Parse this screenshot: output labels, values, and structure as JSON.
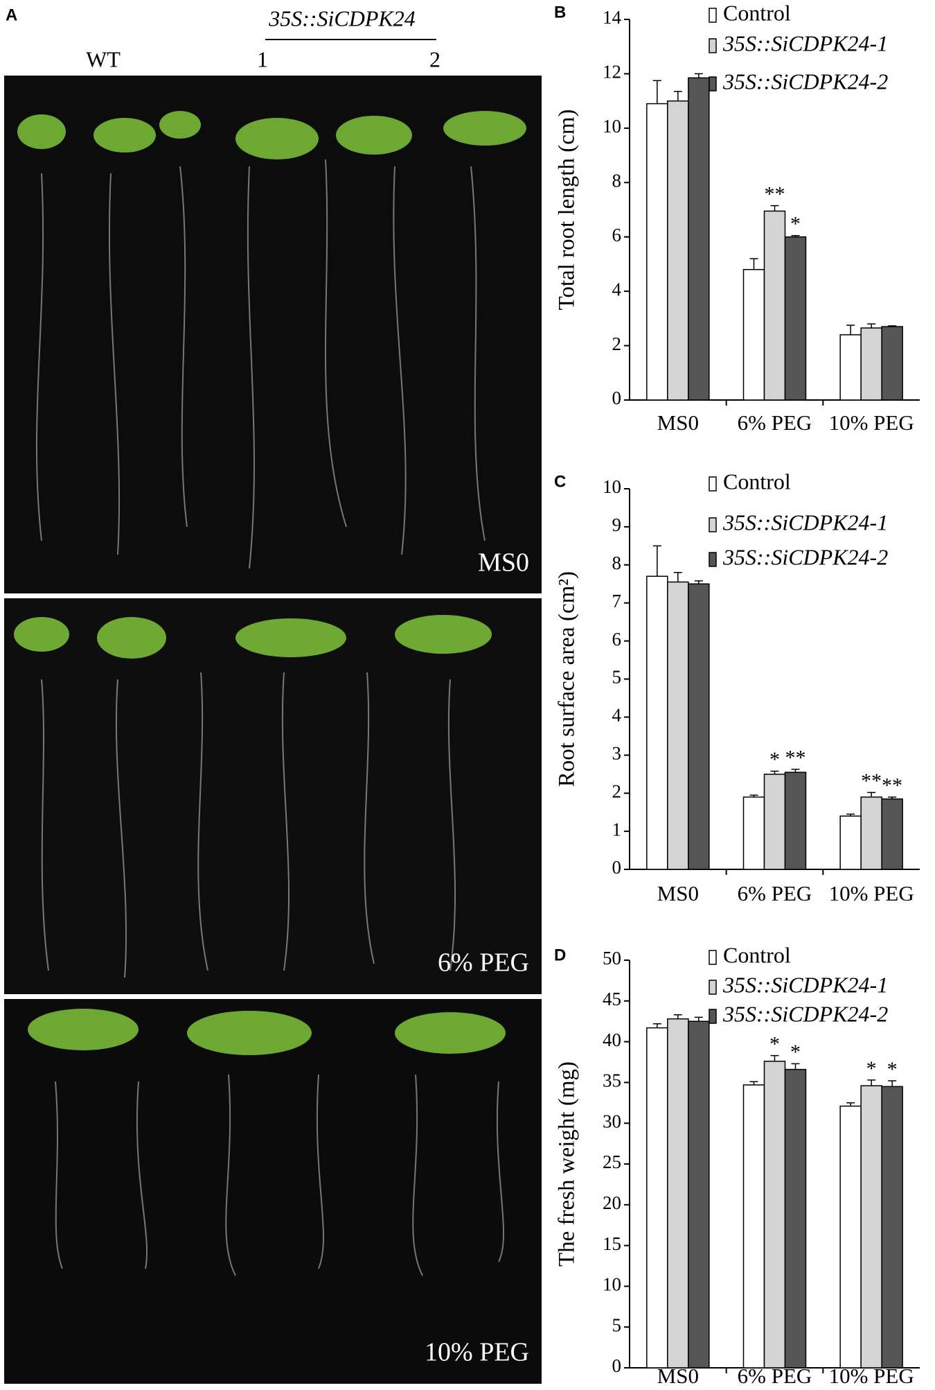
{
  "panel_a": {
    "letter": "A",
    "construct": "35S::SiCDPK24",
    "genotypes": [
      "WT",
      "1",
      "2"
    ],
    "treatments": [
      "MS0",
      "6% PEG",
      "10% PEG"
    ]
  },
  "chart_data": [
    {
      "type": "bar",
      "letter": "B",
      "y_label": "Total root length (cm)",
      "categories": [
        "MS0",
        "6% PEG",
        "10% PEG"
      ],
      "ylim": [
        0,
        14
      ],
      "yticks": [
        0,
        2,
        4,
        6,
        8,
        10,
        12,
        14
      ],
      "series": [
        {
          "name": "Control",
          "color": "#ffffff",
          "values": [
            10.9,
            4.8,
            2.4
          ],
          "errors": [
            0.85,
            0.4,
            0.35
          ],
          "significance": [
            null,
            null,
            null
          ]
        },
        {
          "name": "35S::SiCDPK24-1",
          "color": "#d4d4d4",
          "values": [
            11.0,
            6.95,
            2.65
          ],
          "errors": [
            0.35,
            0.2,
            0.15
          ],
          "significance": [
            null,
            "**",
            null
          ]
        },
        {
          "name": "35S::SiCDPK24-2",
          "color": "#555555",
          "values": [
            11.85,
            6.0,
            2.7
          ],
          "errors": [
            0.15,
            0.05,
            0.03
          ],
          "significance": [
            null,
            "*",
            null
          ]
        }
      ]
    },
    {
      "type": "bar",
      "letter": "C",
      "y_label": "Root surface area (cm²)",
      "categories": [
        "MS0",
        "6% PEG",
        "10% PEG"
      ],
      "ylim": [
        0,
        10
      ],
      "yticks": [
        0,
        1,
        2,
        3,
        4,
        5,
        6,
        7,
        8,
        9,
        10
      ],
      "series": [
        {
          "name": "Control",
          "color": "#ffffff",
          "values": [
            7.7,
            1.9,
            1.4
          ],
          "errors": [
            0.8,
            0.05,
            0.05
          ],
          "significance": [
            null,
            null,
            null
          ]
        },
        {
          "name": "35S::SiCDPK24-1",
          "color": "#d4d4d4",
          "values": [
            7.55,
            2.5,
            1.9
          ],
          "errors": [
            0.25,
            0.08,
            0.12
          ],
          "significance": [
            null,
            "*",
            "**"
          ]
        },
        {
          "name": "35S::SiCDPK24-2",
          "color": "#555555",
          "values": [
            7.5,
            2.55,
            1.85
          ],
          "errors": [
            0.08,
            0.08,
            0.05
          ],
          "significance": [
            null,
            "**",
            "**"
          ]
        }
      ]
    },
    {
      "type": "bar",
      "letter": "D",
      "y_label": "The fresh weight (mg)",
      "categories": [
        "MS0",
        "6% PEG",
        "10% PEG"
      ],
      "ylim": [
        0,
        50
      ],
      "yticks": [
        0,
        5,
        10,
        15,
        20,
        25,
        30,
        35,
        40,
        45,
        50
      ],
      "series": [
        {
          "name": "Control",
          "color": "#ffffff",
          "values": [
            41.7,
            34.7,
            32.1
          ],
          "errors": [
            0.5,
            0.4,
            0.4
          ],
          "significance": [
            null,
            null,
            null
          ]
        },
        {
          "name": "35S::SiCDPK24-1",
          "color": "#d4d4d4",
          "values": [
            42.8,
            37.6,
            34.6
          ],
          "errors": [
            0.5,
            0.7,
            0.7
          ],
          "significance": [
            null,
            "*",
            "*"
          ]
        },
        {
          "name": "35S::SiCDPK24-2",
          "color": "#555555",
          "values": [
            42.5,
            36.6,
            34.5
          ],
          "errors": [
            0.5,
            0.7,
            0.7
          ],
          "significance": [
            null,
            "*",
            "*"
          ]
        }
      ]
    }
  ]
}
